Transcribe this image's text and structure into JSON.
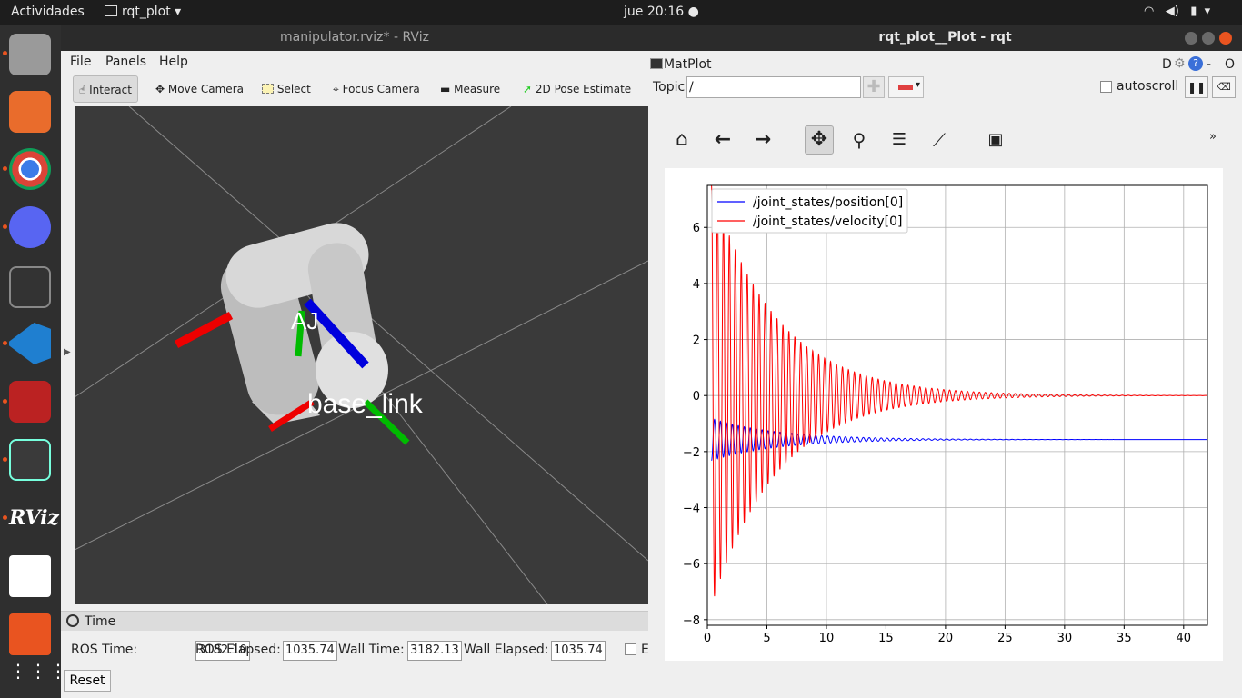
{
  "topbar": {
    "activities": "Actividades",
    "app_menu": "rqt_plot",
    "clock": "jue 20:16"
  },
  "rviz": {
    "window_title": "manipulator.rviz* - RViz",
    "menu": [
      "File",
      "Panels",
      "Help"
    ],
    "tools": [
      "Interact",
      "Move Camera",
      "Select",
      "Focus Camera",
      "Measure",
      "2D Pose Estimate"
    ],
    "scene_labels": {
      "frame_a": "AJ",
      "frame_b": "base_link"
    },
    "time_panel": {
      "title": "Time",
      "ros_time_label": "ROS Time:",
      "ros_time_value": "3182.10",
      "ros_elapsed_label": "ROS Elapsed:",
      "ros_elapsed_value": "1035.74",
      "wall_time_label": "Wall Time:",
      "wall_time_value": "3182.13",
      "wall_elapsed_label": "Wall Elapsed:",
      "wall_elapsed_value": "1035.74",
      "reset_label": "Reset",
      "experimental_label": "E"
    }
  },
  "rqt": {
    "window_title": "rqt_plot__Plot - rqt",
    "plugin_title": "MatPlot",
    "plugin_controls": [
      "D",
      "-",
      "O"
    ],
    "topic_label": "Topic",
    "topic_value": "/",
    "autoscroll_label": "autoscroll",
    "toolbar_icons": [
      "home-icon",
      "back-arrow-icon",
      "forward-arrow-icon",
      "pan-icon",
      "zoom-icon",
      "subplot-config-icon",
      "axis-edit-icon",
      "save-icon"
    ],
    "overflow": "»"
  },
  "chart_data": {
    "type": "line",
    "title": "",
    "xlabel": "",
    "ylabel": "",
    "xlim": [
      0,
      42
    ],
    "ylim": [
      -8.2,
      7.5
    ],
    "xticks": [
      0,
      5,
      10,
      15,
      20,
      25,
      30,
      35,
      40
    ],
    "yticks": [
      -8,
      -6,
      -4,
      -2,
      0,
      2,
      4,
      6
    ],
    "grid": true,
    "legend_position": "top-left",
    "series": [
      {
        "name": "/joint_states/position[0]",
        "color": "#0000ff",
        "model": "damped_oscillation",
        "offset": -1.57,
        "amplitude": 0.75,
        "period": 0.5,
        "decay_time": 5.5
      },
      {
        "name": "/joint_states/velocity[0]",
        "color": "#ff0000",
        "model": "damped_oscillation",
        "offset": 0.0,
        "amplitude": 7.5,
        "period": 0.5,
        "decay_time": 5.5
      }
    ]
  }
}
